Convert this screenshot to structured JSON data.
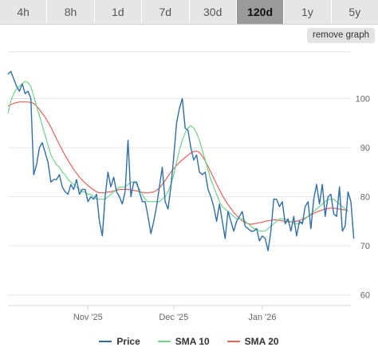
{
  "timeframe_tabs": [
    {
      "label": "4h",
      "active": false
    },
    {
      "label": "8h",
      "active": false
    },
    {
      "label": "1d",
      "active": false
    },
    {
      "label": "7d",
      "active": false
    },
    {
      "label": "30d",
      "active": false
    },
    {
      "label": "120d",
      "active": true
    },
    {
      "label": "1y",
      "active": false
    },
    {
      "label": "5y",
      "active": false
    }
  ],
  "remove_graph_label": "remove graph",
  "legend": [
    {
      "name": "Price",
      "color": "#2f6ea8"
    },
    {
      "name": "SMA 10",
      "color": "#6fd38a"
    },
    {
      "name": "SMA 20",
      "color": "#e8625a"
    }
  ],
  "chart_data": {
    "type": "line",
    "y_range": [
      58,
      110
    ],
    "y_ticks": [
      60,
      70,
      80,
      90,
      100
    ],
    "x_range": [
      0,
      120
    ],
    "x_ticks": [
      {
        "x": 28,
        "label": "Nov '25"
      },
      {
        "x": 58,
        "label": "Dec '25"
      },
      {
        "x": 89,
        "label": "Jan '26"
      }
    ],
    "grid": true,
    "legend_position": "bottom",
    "series": [
      {
        "name": "Price",
        "color": "#2f6ea8",
        "values": [
          105,
          105.5,
          104,
          102.5,
          101.5,
          103,
          101,
          101.5,
          100,
          84.5,
          86.5,
          90,
          91,
          89,
          87,
          83,
          83.5,
          83.5,
          84.5,
          82,
          81,
          80.5,
          82.5,
          81.5,
          83.5,
          80.5,
          81.5,
          81.5,
          79,
          80,
          79.5,
          80.5,
          75,
          72,
          80,
          85,
          82,
          84,
          81,
          80,
          78.5,
          81,
          91.5,
          80,
          83,
          83,
          81,
          79,
          79,
          76,
          72.5,
          75,
          78,
          82,
          86,
          79,
          77.5,
          82,
          88,
          95,
          98,
          100,
          94,
          93.5,
          90,
          87.5,
          88.5,
          85,
          84.5,
          85,
          81.5,
          80,
          78,
          75,
          78.5,
          75,
          71.5,
          77,
          75,
          73,
          75,
          76,
          77,
          74,
          73.5,
          73,
          73,
          73.5,
          71,
          72,
          71.5,
          69,
          73,
          79.5,
          79.5,
          78,
          79,
          74.5,
          75.5,
          73,
          76,
          72,
          75,
          74.5,
          78,
          79,
          73.5,
          79.5,
          82.5,
          78.5,
          82.5,
          76,
          80,
          80.5,
          76.5,
          76,
          82,
          73,
          74,
          81,
          79,
          71.5
        ],
        "x_start": 0
      },
      {
        "name": "SMA 10",
        "color": "#6fd38a",
        "x_start": 0,
        "values": [
          97,
          99.5,
          101,
          102,
          102.5,
          103,
          103.5,
          103.2,
          102.5,
          100.5,
          98.5,
          96.5,
          94.5,
          92.5,
          90.5,
          88.5,
          87.5,
          86.5,
          86,
          85,
          84.5,
          83.5,
          83,
          82.5,
          82,
          81.5,
          81,
          81,
          80.5,
          80.5,
          80,
          79.5,
          79.5,
          79.5,
          79.5,
          80,
          80.5,
          81,
          81.5,
          82,
          82,
          82,
          82.5,
          83,
          83,
          82.5,
          81.5,
          80.5,
          79.5,
          79,
          79,
          79,
          79,
          79,
          79.5,
          80,
          81,
          82.5,
          84.5,
          87,
          89.5,
          91.5,
          93,
          94,
          94.5,
          94,
          93,
          91.5,
          89.5,
          87.5,
          85.5,
          83.5,
          82,
          80.5,
          79,
          78,
          77.5,
          77,
          76.5,
          76,
          75.5,
          75.5,
          75.5,
          75,
          74.5,
          74,
          73.5,
          73.5,
          73,
          73,
          73,
          73.5,
          74,
          74.5,
          75,
          75.5,
          75.5,
          75.5,
          75,
          75,
          74.5,
          74.5,
          74.5,
          75,
          75.5,
          76,
          76.5,
          77,
          77.5,
          78,
          78.5,
          79,
          79.5,
          79.5,
          79.5,
          79,
          78.5,
          78,
          77.5,
          77
        ]
      },
      {
        "name": "SMA 20",
        "color": "#e8625a",
        "x_start": 0,
        "values": [
          98.5,
          98.8,
          99,
          99.2,
          99.3,
          99.3,
          99.3,
          99.3,
          99.2,
          99,
          98.5,
          97.8,
          97,
          96.2,
          95.2,
          94.2,
          93,
          91.8,
          90.6,
          89.5,
          88.4,
          87.4,
          86.5,
          85.6,
          84.8,
          84,
          83.4,
          82.8,
          82.3,
          81.8,
          81.4,
          81,
          80.8,
          80.8,
          80.8,
          81,
          81,
          81.2,
          81.3,
          81.5,
          81.5,
          81.5,
          81.5,
          81.4,
          81.3,
          81.2,
          81,
          80.9,
          80.8,
          80.8,
          80.9,
          81,
          81.3,
          81.8,
          82.5,
          83.3,
          84.2,
          85,
          85.7,
          86.4,
          87,
          87.5,
          88,
          88.5,
          88.9,
          89.2,
          89.3,
          89,
          88.3,
          87.3,
          86.2,
          85,
          83.8,
          82.6,
          81.4,
          80.3,
          79.3,
          78.4,
          77.6,
          76.8,
          76.2,
          75.6,
          75.1,
          74.7,
          74.5,
          74.4,
          74.5,
          74.6,
          74.7,
          74.8,
          75,
          75.1,
          75.2,
          75.3,
          75.3,
          75.2,
          75.1,
          75,
          74.9,
          74.9,
          74.9,
          75,
          75.2,
          75.4,
          75.7,
          76,
          76.3,
          76.6,
          76.9,
          77.1,
          77.3,
          77.5,
          77.6,
          77.7,
          77.7,
          77.6,
          77.5,
          77.4,
          77.3,
          77.2
        ]
      }
    ]
  }
}
